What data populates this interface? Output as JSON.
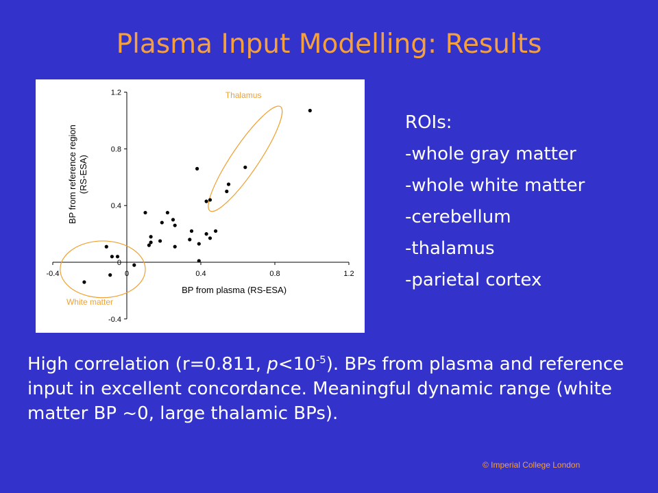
{
  "slide": {
    "title": "Plasma Input Modelling: Results",
    "roi_heading": "ROIs:",
    "roi_items": [
      "-whole gray matter",
      "-whole white matter",
      "-cerebellum",
      "-thalamus",
      "-parietal cortex"
    ],
    "summary": {
      "part1": "High correlation (r=0.811, ",
      "p_symbol": "p",
      "part2": "<10",
      "exponent": "-5",
      "part3": "). BPs from plasma and reference input in excellent concordance. Meaningful dynamic range (white matter BP ~0, large thalamic BPs)."
    },
    "copyright": "© Imperial College London"
  },
  "colors": {
    "background": "#3333cc",
    "title": "#f5a040",
    "annotation": "#f0a030",
    "text": "#ffffff"
  },
  "chart_data": {
    "type": "scatter",
    "xlabel": "BP from plasma (RS-ESA)",
    "ylabel_line1": "BP from reference region",
    "ylabel_line2": "(RS-ESA)",
    "xlim": [
      -0.4,
      1.2
    ],
    "ylim": [
      -0.4,
      1.2
    ],
    "x_ticks": [
      -0.4,
      0,
      0.4,
      0.8,
      1.2
    ],
    "y_ticks": [
      -0.4,
      0,
      0.4,
      0.8,
      1.2
    ],
    "x_tick_labels": [
      "-0.4",
      "0",
      "0.4",
      "0.8",
      "1.2"
    ],
    "y_tick_labels": [
      "-0.4",
      "0",
      "0.4",
      "0.8",
      "1.2"
    ],
    "points": [
      {
        "x": -0.23,
        "y": -0.14
      },
      {
        "x": -0.11,
        "y": 0.11
      },
      {
        "x": -0.08,
        "y": 0.04
      },
      {
        "x": -0.05,
        "y": 0.04
      },
      {
        "x": -0.09,
        "y": -0.09
      },
      {
        "x": 0.04,
        "y": -0.02
      },
      {
        "x": 0.1,
        "y": 0.35
      },
      {
        "x": 0.12,
        "y": 0.12
      },
      {
        "x": 0.13,
        "y": 0.14
      },
      {
        "x": 0.13,
        "y": 0.18
      },
      {
        "x": 0.18,
        "y": 0.15
      },
      {
        "x": 0.19,
        "y": 0.28
      },
      {
        "x": 0.22,
        "y": 0.35
      },
      {
        "x": 0.25,
        "y": 0.3
      },
      {
        "x": 0.26,
        "y": 0.26
      },
      {
        "x": 0.26,
        "y": 0.11
      },
      {
        "x": 0.34,
        "y": 0.16
      },
      {
        "x": 0.35,
        "y": 0.22
      },
      {
        "x": 0.38,
        "y": 0.66
      },
      {
        "x": 0.39,
        "y": 0.13
      },
      {
        "x": 0.39,
        "y": 0.01
      },
      {
        "x": 0.43,
        "y": 0.2
      },
      {
        "x": 0.43,
        "y": 0.43
      },
      {
        "x": 0.45,
        "y": 0.17
      },
      {
        "x": 0.45,
        "y": 0.44
      },
      {
        "x": 0.48,
        "y": 0.22
      },
      {
        "x": 0.54,
        "y": 0.5
      },
      {
        "x": 0.55,
        "y": 0.55
      },
      {
        "x": 0.64,
        "y": 0.67
      },
      {
        "x": 0.99,
        "y": 1.07
      }
    ],
    "annotations": [
      {
        "label": "Thalamus",
        "cx": 0.64,
        "cy": 0.73,
        "rx": 0.34,
        "ry": 0.095,
        "rotation_deg": -56,
        "label_x": 0.63,
        "label_y": 1.16
      },
      {
        "label": "White matter",
        "cx": -0.13,
        "cy": -0.05,
        "rx": 0.23,
        "ry": 0.2,
        "rotation_deg": 0,
        "label_x": -0.2,
        "label_y": -0.3
      }
    ]
  }
}
